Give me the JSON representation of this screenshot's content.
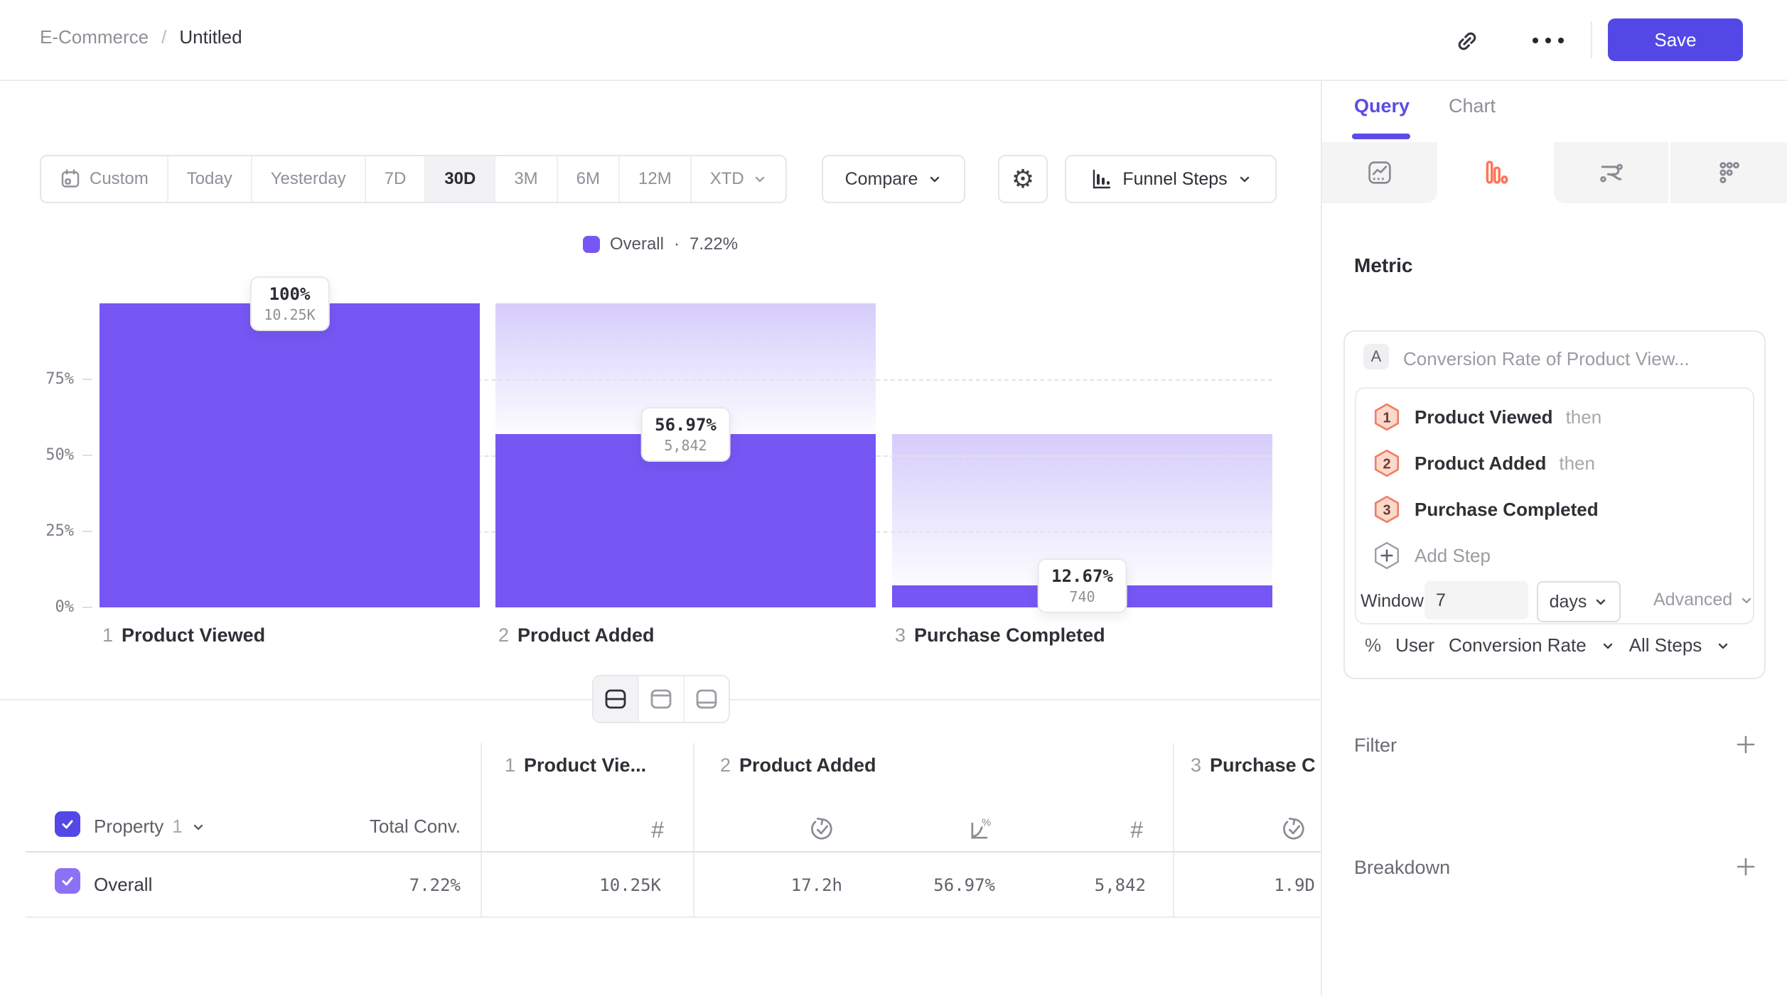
{
  "header": {
    "breadcrumb_root": "E-Commerce",
    "separator": "/",
    "title": "Untitled",
    "save_label": "Save"
  },
  "toolbar": {
    "ranges": [
      "Custom",
      "Today",
      "Yesterday",
      "7D",
      "30D",
      "3M",
      "6M",
      "12M",
      "XTD"
    ],
    "selected_range": "30D",
    "compare_label": "Compare",
    "chart_type_label": "Funnel Steps"
  },
  "legend": {
    "series": "Overall",
    "separator": "·",
    "value": "7.22%"
  },
  "chart_data": {
    "type": "bar",
    "subtype": "funnel-steps",
    "series_name": "Overall",
    "overall_conversion": "7.22%",
    "categories": [
      "Product Viewed",
      "Product Added",
      "Purchase Completed"
    ],
    "step_numbers": [
      "1",
      "2",
      "3"
    ],
    "bar_height_pct_of_first": [
      100,
      56.97,
      7.22
    ],
    "labels_pct": [
      "100%",
      "56.97%",
      "12.67%"
    ],
    "labels_count": [
      "10.25K",
      "5,842",
      "740"
    ],
    "counts": [
      10250,
      5842,
      740
    ],
    "yticks": [
      "75%",
      "50%",
      "25%",
      "0%"
    ],
    "ylim": [
      0,
      100
    ],
    "gridlines_pct": [
      75,
      50,
      25
    ],
    "grid": "dashed",
    "legend_position": "top-center",
    "bar_color": "#7657f3"
  },
  "table": {
    "property_label": "Property",
    "property_index": "1",
    "total_conv_label": "Total Conv.",
    "columns": [
      {
        "step": "1",
        "label": "Product Vie..."
      },
      {
        "step": "2",
        "label": "Product Added"
      },
      {
        "step": "3",
        "label": "Purchase C"
      }
    ],
    "row": {
      "label": "Overall",
      "total_conv": "7.22%",
      "values": [
        "10.25K",
        "17.2h",
        "56.97%",
        "5,842",
        "1.9D"
      ]
    }
  },
  "panel": {
    "tab_query": "Query",
    "tab_chart": "Chart",
    "metric_heading": "Metric",
    "metric_letter": "A",
    "metric_title": "Conversion Rate of Product View...",
    "steps": [
      {
        "n": "1",
        "name": "Product Viewed",
        "suffix": "then"
      },
      {
        "n": "2",
        "name": "Product Added",
        "suffix": "then"
      },
      {
        "n": "3",
        "name": "Purchase Completed",
        "suffix": ""
      }
    ],
    "add_step_label": "Add Step",
    "window_label": "Window",
    "window_value": "7",
    "window_unit": "days",
    "advanced_label": "Advanced",
    "measure": {
      "symbol": "%",
      "entity": "User",
      "metric": "Conversion Rate",
      "scope": "All Steps"
    },
    "filter_label": "Filter",
    "breakdown_label": "Breakdown"
  },
  "colors": {
    "accent": "#5b4be8",
    "save_button": "#5348e5",
    "bar": "#7657f3",
    "funnel_tab_icon": "#ff7557",
    "step_badge_fill": "#fcd8cd",
    "step_badge_border": "#ee7f63"
  }
}
